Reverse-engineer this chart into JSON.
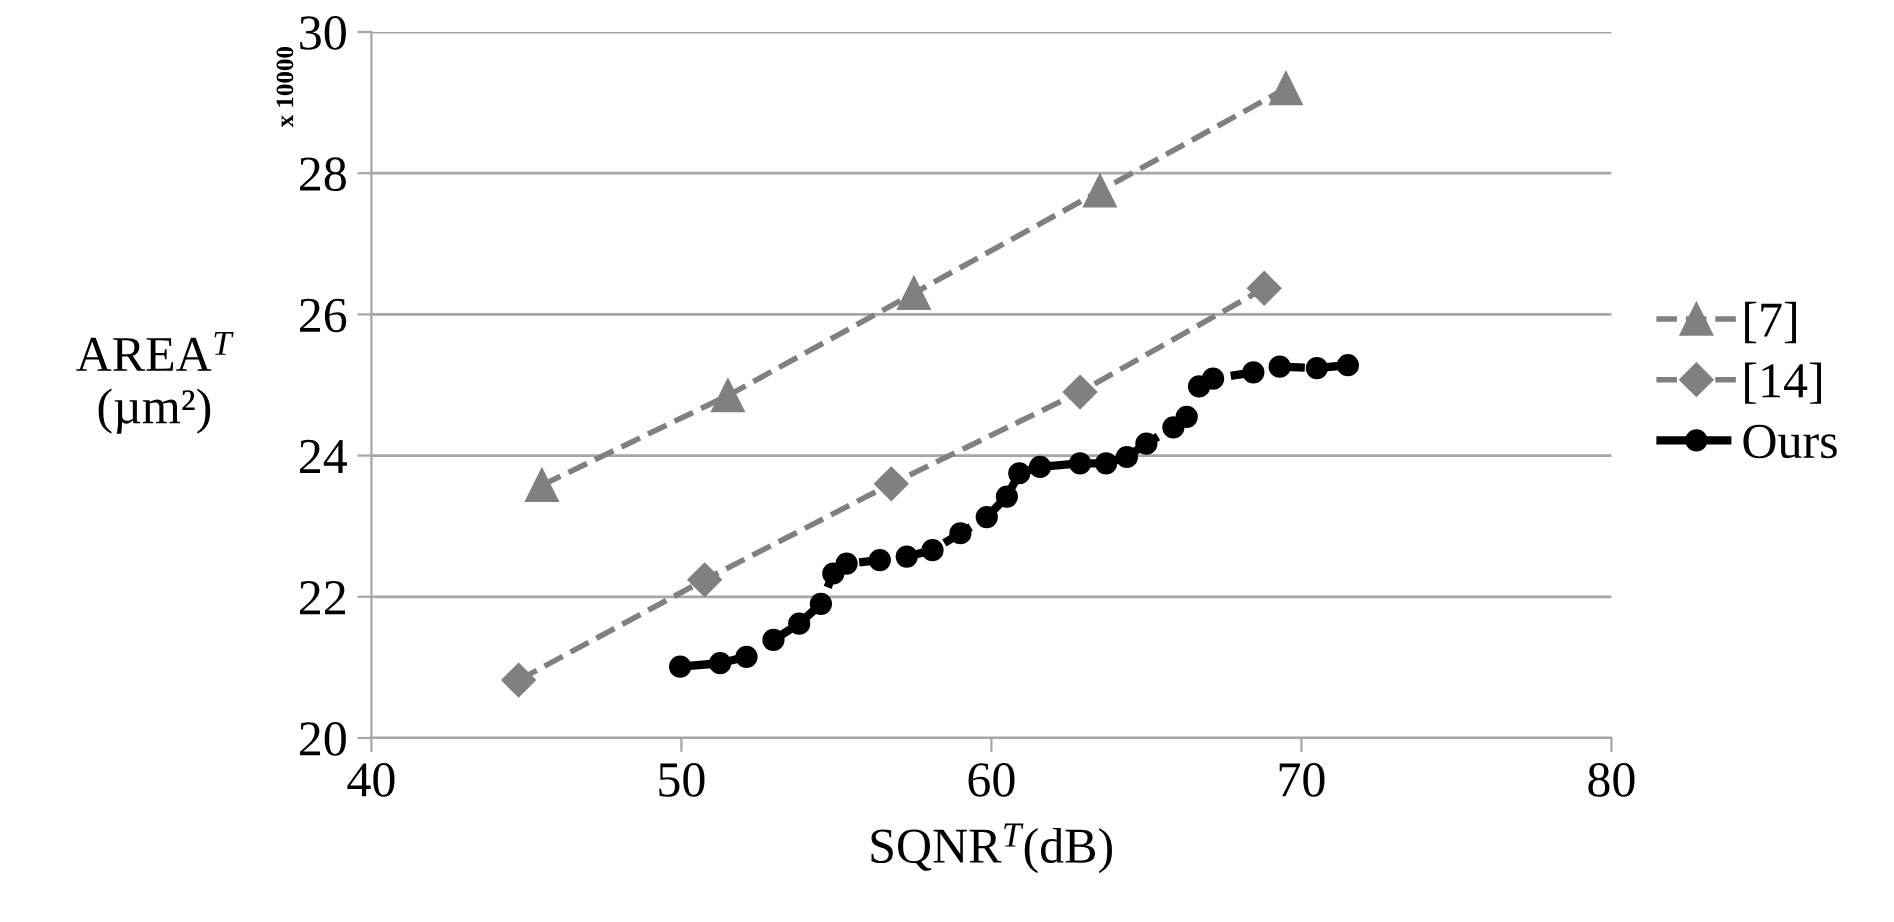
{
  "chart_data": {
    "type": "line",
    "xlabel": "SQNR$^{T}$(dB)",
    "ylabel": "AREA$^{T}$\n(µm²)",
    "annotations": [
      "x 10000"
    ],
    "xlim": [
      40,
      80
    ],
    "xticks": [
      40,
      50,
      60,
      70,
      80
    ],
    "ylim": [
      20,
      30
    ],
    "yticks": [
      20,
      22,
      24,
      26,
      28,
      30
    ],
    "grid": "y",
    "legend": "right",
    "line_style": "dashed",
    "series": [
      {
        "name": "[7]",
        "color": "#808080",
        "marker": "triangle",
        "x": [
          45.5,
          51.5,
          57.5,
          63.5,
          69.5
        ],
        "values": [
          23.58,
          24.85,
          26.3,
          27.75,
          29.2
        ]
      },
      {
        "name": "[14]",
        "color": "#808080",
        "marker": "diamond",
        "x": [
          44.75,
          50.75,
          56.77,
          62.86,
          68.8
        ],
        "values": [
          20.82,
          22.24,
          23.6,
          24.9,
          26.37
        ]
      },
      {
        "name": "Ours",
        "color": "#000000",
        "marker": "circle",
        "x": [
          49.96,
          51.25,
          52.1,
          52.97,
          53.8,
          54.5,
          54.9,
          55.33,
          56.4,
          57.27,
          58.1,
          59.0,
          59.85,
          60.5,
          60.9,
          61.57,
          62.86,
          63.7,
          64.37,
          65.0,
          65.87,
          66.3,
          66.7,
          67.15,
          68.45,
          69.3,
          70.5,
          71.5
        ],
        "values": [
          21.01,
          21.06,
          21.15,
          21.39,
          21.62,
          21.9,
          22.33,
          22.47,
          22.52,
          22.57,
          22.66,
          22.9,
          23.13,
          23.42,
          23.75,
          23.84,
          23.89,
          23.89,
          23.98,
          24.17,
          24.4,
          24.55,
          24.98,
          25.09,
          25.18,
          25.26,
          25.24,
          25.28
        ]
      }
    ]
  }
}
